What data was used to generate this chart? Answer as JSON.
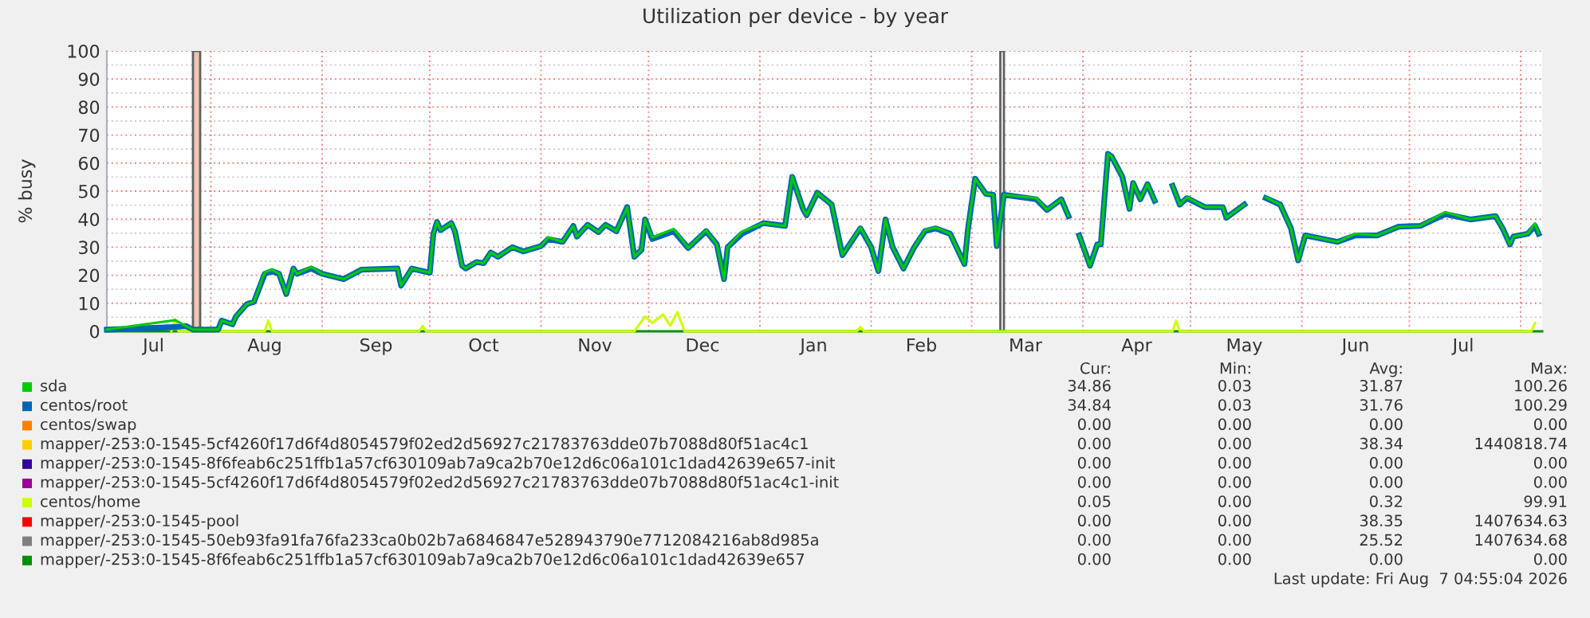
{
  "chart_data": {
    "type": "line",
    "title": "Utilization per device - by year",
    "ylabel": "% busy",
    "xlim": [
      "2025-07-03",
      "2026-08-07"
    ],
    "ylim": [
      0,
      100
    ],
    "yticks": [
      0,
      {
        "value": 5,
        "label": null
      },
      10,
      {
        "value": 15,
        "label": null
      },
      20,
      {
        "value": 25,
        "label": null
      },
      30,
      {
        "value": 35,
        "label": null
      },
      40,
      {
        "value": 45,
        "label": null
      },
      50,
      {
        "value": 55,
        "label": null
      },
      60,
      {
        "value": 65,
        "label": null
      },
      70,
      {
        "value": 75,
        "label": null
      },
      80,
      {
        "value": 85,
        "label": null
      },
      90,
      {
        "value": 95,
        "label": null
      },
      100
    ],
    "xticks": [
      {
        "value": "2025-07-16",
        "label": "Jul"
      },
      {
        "value": "2025-08-01",
        "label": null
      },
      {
        "value": "2025-08-16",
        "label": "Aug"
      },
      {
        "value": "2025-09-01",
        "label": null
      },
      {
        "value": "2025-09-16",
        "label": "Sep"
      },
      {
        "value": "2025-10-01",
        "label": null
      },
      {
        "value": "2025-10-16",
        "label": "Oct"
      },
      {
        "value": "2025-11-01",
        "label": null
      },
      {
        "value": "2025-11-16",
        "label": "Nov"
      },
      {
        "value": "2025-12-01",
        "label": null
      },
      {
        "value": "2025-12-16",
        "label": "Dec"
      },
      {
        "value": "2026-01-01",
        "label": null
      },
      {
        "value": "2026-01-16",
        "label": "Jan"
      },
      {
        "value": "2026-02-01",
        "label": null
      },
      {
        "value": "2026-02-15",
        "label": "Feb"
      },
      {
        "value": "2026-03-01",
        "label": null
      },
      {
        "value": "2026-03-16",
        "label": "Mar"
      },
      {
        "value": "2026-04-01",
        "label": null
      },
      {
        "value": "2026-04-16",
        "label": "Apr"
      },
      {
        "value": "2026-05-01",
        "label": null
      },
      {
        "value": "2026-05-16",
        "label": "May"
      },
      {
        "value": "2026-06-01",
        "label": null
      },
      {
        "value": "2026-06-16",
        "label": "Jun"
      },
      {
        "value": "2026-07-01",
        "label": null
      },
      {
        "value": "2026-07-16",
        "label": "Jul"
      },
      {
        "value": "2026-08-01",
        "label": null
      }
    ],
    "grid": true,
    "legend": "bottom",
    "marker": "none",
    "line_style": "solid",
    "bands": [
      {
        "axis": "x",
        "from": "2025-07-27",
        "to": "2025-07-29",
        "color": "#f2c4b4"
      },
      {
        "axis": "x",
        "from": "2026-03-09",
        "to": "2026-03-10",
        "color": "#ffffff"
      }
    ],
    "series": [
      {
        "name": "sda",
        "color": "#00cc00",
        "x": [
          "2025-07-03",
          "2025-07-22",
          "2025-07-25",
          "2025-07-27",
          "2025-08-03",
          "2025-08-04",
          "2025-08-07",
          "2025-08-08",
          "2025-08-11",
          "2025-08-13",
          "2025-08-16",
          "2025-08-18",
          "2025-08-20",
          "2025-08-22",
          "2025-08-24",
          "2025-08-25",
          "2025-08-29",
          "2025-09-01",
          "2025-09-07",
          "2025-09-12",
          "2025-09-22",
          "2025-09-23",
          "2025-09-26",
          "2025-10-01",
          "2025-10-02",
          "2025-10-03",
          "2025-10-04",
          "2025-10-07",
          "2025-10-08",
          "2025-10-10",
          "2025-10-11",
          "2025-10-14",
          "2025-10-16",
          "2025-10-18",
          "2025-10-20",
          "2025-10-24",
          "2025-10-27",
          "2025-11-01",
          "2025-11-03",
          "2025-11-07",
          "2025-11-10",
          "2025-11-11",
          "2025-11-14",
          "2025-11-17",
          "2025-11-19",
          "2025-11-22",
          "2025-11-25",
          "2025-11-27",
          "2025-11-29",
          "2025-11-30",
          "2025-12-02",
          "2025-12-08",
          "2025-12-12",
          "2025-12-17",
          "2025-12-20",
          "2025-12-22",
          "2025-12-23",
          "2025-12-27",
          "2026-01-02",
          "2026-01-08",
          "2026-01-10",
          "2026-01-13",
          "2026-01-14",
          "2026-01-17",
          "2026-01-21",
          "2026-01-24",
          "2026-01-29",
          "2026-02-01",
          "2026-02-03",
          "2026-02-05",
          "2026-02-07",
          "2026-02-10",
          "2026-02-13",
          "2026-02-16",
          "2026-02-19",
          "2026-02-23",
          "2026-02-27",
          "2026-02-28",
          "2026-03-02",
          "2026-03-05",
          "2026-03-07",
          "2026-03-08",
          "2026-03-10",
          "2026-03-19",
          "2026-03-22",
          "2026-03-26",
          "2026-03-28",
          "2026-03-30",
          "2026-03-31",
          "2026-04-03",
          "2026-04-05",
          "2026-04-06",
          "2026-04-08",
          "2026-04-09",
          "2026-04-12",
          "2026-04-14",
          "2026-04-15",
          "2026-04-17",
          "2026-04-19",
          "2026-04-21",
          "2026-04-25",
          "2026-04-26",
          "2026-04-28",
          "2026-04-30",
          "2026-05-05",
          "2026-05-10",
          "2026-05-11",
          "2026-05-16",
          "2026-05-19",
          "2026-05-22",
          "2026-05-26",
          "2026-05-29",
          "2026-05-31",
          "2026-06-02",
          "2026-06-11",
          "2026-06-16",
          "2026-06-22",
          "2026-06-28",
          "2026-07-04",
          "2026-07-11",
          "2026-07-18",
          "2026-07-25",
          "2026-07-27",
          "2026-07-29",
          "2026-07-30",
          "2026-08-03",
          "2026-08-05",
          "2026-08-06"
        ],
        "values": [
          0.6,
          4,
          1.9,
          0.6,
          0.6,
          3.8,
          2.5,
          5.3,
          9.7,
          10.5,
          21,
          22,
          20.5,
          13.3,
          22.4,
          20.5,
          23,
          20.5,
          18.6,
          22,
          22.4,
          16.3,
          22.4,
          20.9,
          34.8,
          39,
          36.1,
          38.6,
          35.7,
          23.4,
          22.4,
          24.7,
          24.3,
          28.1,
          26.6,
          30,
          28.5,
          30.4,
          33.5,
          31.9,
          37.6,
          33.8,
          38,
          35.4,
          38,
          35.7,
          44.3,
          26.6,
          29.1,
          39.9,
          33.5,
          36.5,
          29.7,
          36,
          31,
          18.6,
          30,
          35.5,
          38.6,
          37.6,
          55.1,
          43.7,
          41.4,
          49.4,
          45.2,
          27.2,
          37,
          30,
          21.5,
          39.9,
          30,
          22.4,
          30,
          36,
          37,
          34.8,
          24,
          36.7,
          54.4,
          49,
          48.7,
          30.4,
          48.7,
          47.5,
          43.3,
          47.1,
          41.1,
          null,
          34.2,
          23.4,
          31,
          31,
          63.3,
          62.4,
          55.1,
          43.7,
          52.9,
          47.1,
          52.5,
          46.6,
          null,
          51.9,
          45.2,
          47.8,
          44.3,
          44.3,
          40.5,
          45.2,
          null,
          47.8,
          45.2,
          36.7,
          25.3,
          34.2,
          31.9,
          34.8,
          34.2,
          37.3,
          37.6,
          42.5,
          39.9,
          41.1,
          36.7,
          31,
          33.8,
          34.8,
          38.5,
          34.9
        ]
      },
      {
        "name": "centos/root",
        "color": "#0066b3",
        "x": [
          "2025-07-03",
          "2025-07-22",
          "2025-07-25",
          "2025-07-27",
          "2025-08-03",
          "2025-08-04",
          "2025-08-07",
          "2025-08-08",
          "2025-08-11",
          "2025-08-13",
          "2025-08-16",
          "2025-08-18",
          "2025-08-20",
          "2025-08-22",
          "2025-08-24",
          "2025-08-25",
          "2025-08-29",
          "2025-09-01",
          "2025-09-07",
          "2025-09-12",
          "2025-09-22",
          "2025-09-23",
          "2025-09-26",
          "2025-10-01",
          "2025-10-02",
          "2025-10-03",
          "2025-10-04",
          "2025-10-07",
          "2025-10-08",
          "2025-10-10",
          "2025-10-11",
          "2025-10-14",
          "2025-10-16",
          "2025-10-18",
          "2025-10-20",
          "2025-10-24",
          "2025-10-27",
          "2025-11-01",
          "2025-11-03",
          "2025-11-07",
          "2025-11-10",
          "2025-11-11",
          "2025-11-14",
          "2025-11-17",
          "2025-11-19",
          "2025-11-22",
          "2025-11-25",
          "2025-11-27",
          "2025-11-29",
          "2025-11-30",
          "2025-12-02",
          "2025-12-08",
          "2025-12-12",
          "2025-12-17",
          "2025-12-20",
          "2025-12-22",
          "2025-12-23",
          "2025-12-27",
          "2026-01-02",
          "2026-01-08",
          "2026-01-10",
          "2026-01-13",
          "2026-01-14",
          "2026-01-17",
          "2026-01-21",
          "2026-01-24",
          "2026-01-29",
          "2026-02-01",
          "2026-02-03",
          "2026-02-05",
          "2026-02-07",
          "2026-02-10",
          "2026-02-13",
          "2026-02-16",
          "2026-02-19",
          "2026-02-23",
          "2026-02-27",
          "2026-02-28",
          "2026-03-02",
          "2026-03-05",
          "2026-03-07",
          "2026-03-08",
          "2026-03-10",
          "2026-03-19",
          "2026-03-22",
          "2026-03-26",
          "2026-03-28",
          "2026-03-30",
          "2026-03-31",
          "2026-04-03",
          "2026-04-05",
          "2026-04-06",
          "2026-04-08",
          "2026-04-09",
          "2026-04-12",
          "2026-04-14",
          "2026-04-15",
          "2026-04-17",
          "2026-04-19",
          "2026-04-21",
          "2026-04-25",
          "2026-04-26",
          "2026-04-28",
          "2026-04-30",
          "2026-05-05",
          "2026-05-10",
          "2026-05-11",
          "2026-05-16",
          "2026-05-19",
          "2026-05-22",
          "2026-05-26",
          "2026-05-29",
          "2026-05-31",
          "2026-06-02",
          "2026-06-11",
          "2026-06-16",
          "2026-06-22",
          "2026-06-28",
          "2026-07-04",
          "2026-07-11",
          "2026-07-18",
          "2026-07-25",
          "2026-07-27",
          "2026-07-29",
          "2026-07-30",
          "2026-08-03",
          "2026-08-05",
          "2026-08-06"
        ],
        "values": [
          0.6,
          1.5,
          1.9,
          0.6,
          0.6,
          3.8,
          2.5,
          5.3,
          9.7,
          10.5,
          20.5,
          21.5,
          20.5,
          13.3,
          22.4,
          20.5,
          22.4,
          20.5,
          18.6,
          22,
          22.4,
          16.3,
          22.4,
          20.9,
          34.8,
          39,
          36.1,
          38.6,
          35.7,
          23.4,
          22.4,
          24.7,
          24.3,
          28.1,
          26.6,
          30,
          28.5,
          30.4,
          32.9,
          31.9,
          37.6,
          33.8,
          38,
          35.4,
          38,
          35.7,
          44.3,
          26.6,
          29.1,
          39.9,
          32.9,
          35.7,
          29.7,
          35.7,
          31,
          18.6,
          30,
          34.8,
          38.6,
          37.6,
          55.1,
          43.7,
          41.4,
          49.4,
          45.2,
          27.2,
          36.7,
          30,
          21.5,
          39.9,
          30,
          22.4,
          30,
          35.7,
          36.7,
          34.8,
          24,
          36.7,
          54.4,
          49,
          48.7,
          30.4,
          48.7,
          47.1,
          43.3,
          47.1,
          41.1,
          null,
          34.2,
          23.4,
          31,
          31,
          63.3,
          62.4,
          55.1,
          43.7,
          52.9,
          47.1,
          52.5,
          46.6,
          null,
          51.9,
          45.2,
          47.5,
          44.3,
          44.3,
          40.5,
          45.2,
          null,
          47.5,
          45.2,
          36.7,
          25.3,
          34.2,
          31.9,
          34.2,
          34.2,
          37.3,
          37.6,
          41.8,
          39.9,
          41.1,
          36.7,
          31,
          33.8,
          34.8,
          37.6,
          34.8
        ]
      },
      {
        "name": "centos/swap",
        "color": "#ff8000",
        "values": [
          null
        ]
      },
      {
        "name": "mapper/-253:0-1545-5cf4260f17d6f4d8054579f02ed2d56927c21783763dde07b7088d80f51ac4c1",
        "color": "#ffcc00",
        "values": [
          null
        ]
      },
      {
        "name": "mapper/-253:0-1545-8f6feab6c251ffb1a57cf630109ab7a9ca2b70e12d6c06a101c1dad42639e657-init",
        "color": "#330099",
        "values": [
          null
        ]
      },
      {
        "name": "mapper/-253:0-1545-5cf4260f17d6f4d8054579f02ed2d56927c21783763dde07b7088d80f51ac4c1-init",
        "color": "#990099",
        "values": [
          null
        ]
      },
      {
        "name": "centos/home",
        "color": "#ccff00",
        "x": [
          "2025-07-21",
          "2025-07-22",
          "2025-07-23",
          "2025-08-16",
          "2025-08-17",
          "2025-08-18",
          "2025-09-28",
          "2025-09-29",
          "2025-09-30",
          "2025-11-27",
          "2025-11-30",
          "2025-12-02",
          "2025-12-05",
          "2025-12-07",
          "2025-12-09",
          "2025-12-11",
          "2026-01-28",
          "2026-01-29",
          "2026-01-30",
          "2026-04-26",
          "2026-04-27",
          "2026-04-28",
          "2026-08-04",
          "2026-08-05"
        ],
        "values": [
          0,
          4.4,
          0,
          0,
          3.8,
          0,
          0,
          1.9,
          0,
          0,
          5.3,
          3,
          6,
          2,
          6.8,
          0,
          0,
          1.5,
          0,
          0,
          3.8,
          0,
          0,
          3
        ]
      },
      {
        "name": "mapper/-253:0-1545-pool",
        "color": "#ff0000",
        "values": [
          null
        ]
      },
      {
        "name": "mapper/-253:0-1545-50eb93fa91fa76fa233ca0b02b7a6846847e528943790e7712084216ab8d985a",
        "color": "#808080",
        "values": [
          null
        ]
      },
      {
        "name": "mapper/-253:0-1545-8f6feab6c251ffb1a57cf630109ab7a9ca2b70e12d6c06a101c1dad42639e657",
        "color": "#008f00",
        "x": [
          "2025-07-03",
          "2026-08-07"
        ],
        "values": [
          0,
          0
        ]
      }
    ],
    "annotations": [
      "Cur:",
      "Min:",
      "Avg:",
      "Max:",
      "34.86",
      "0.03",
      "31.87",
      "100.26",
      "34.84",
      "0.03",
      "31.76",
      "100.29",
      "0.00",
      "0.00",
      "0.00",
      "0.00",
      "0.00",
      "0.00",
      "38.34",
      "1440818.74",
      "0.00",
      "0.00",
      "0.00",
      "0.00",
      "0.00",
      "0.00",
      "0.00",
      "0.00",
      "0.05",
      "0.00",
      "0.32",
      "99.91",
      "0.00",
      "0.00",
      "38.35",
      "1407634.63",
      "0.00",
      "0.00",
      "25.52",
      "1407634.68",
      "0.00",
      "0.00",
      "0.00",
      "0.00",
      "Last update: Fri Aug  7 04:55:04 2026"
    ]
  }
}
